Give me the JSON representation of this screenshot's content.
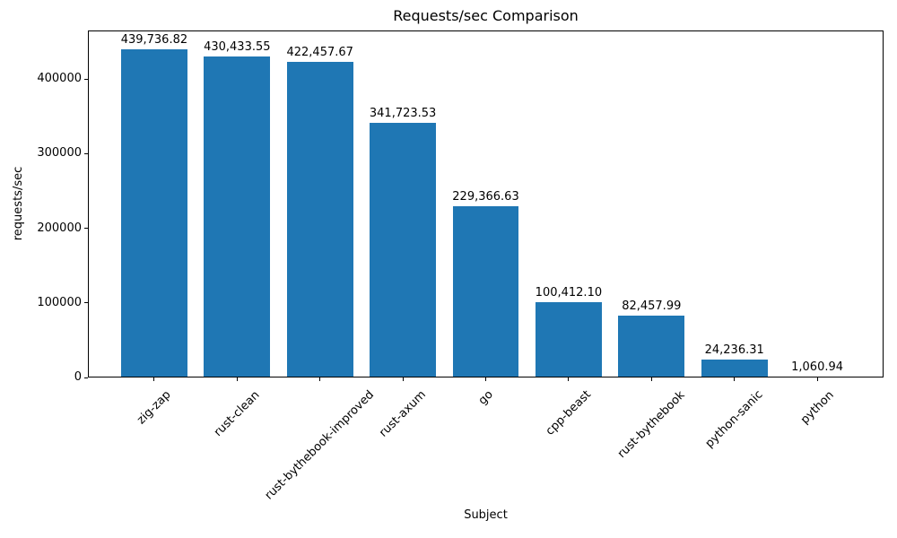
{
  "figure": {
    "background": "#ffffff",
    "text_color": "#000000",
    "spine_color": "#000000"
  },
  "chart_data": {
    "type": "bar",
    "title": "Requests/sec Comparison",
    "xlabel": "Subject",
    "ylabel": "requests/sec",
    "categories": [
      "zig-zap",
      "rust-clean",
      "rust-bythebook-improved",
      "rust-axum",
      "go",
      "cpp-beast",
      "rust-bythebook",
      "python-sanic",
      "python"
    ],
    "values": [
      439736.82,
      430433.55,
      422457.67,
      341723.53,
      229366.63,
      100412.1,
      82457.99,
      24236.31,
      1060.94
    ],
    "value_labels": [
      "439,736.82",
      "430,433.55",
      "422,457.67",
      "341,723.53",
      "229,366.63",
      "100,412.10",
      "82,457.99",
      "24,236.31",
      "1,060.94"
    ],
    "y_ticks": [
      0,
      100000,
      200000,
      300000,
      400000
    ],
    "y_tick_labels": [
      "0",
      "100000",
      "200000",
      "300000",
      "400000"
    ],
    "xlim": [
      -0.8,
      8.8
    ],
    "ylim": [
      0,
      465000
    ],
    "bar_color": "#1f77b4",
    "bar_width_fraction": 0.8,
    "x_tick_rotation_deg": 45,
    "grid": false,
    "legend": null
  }
}
